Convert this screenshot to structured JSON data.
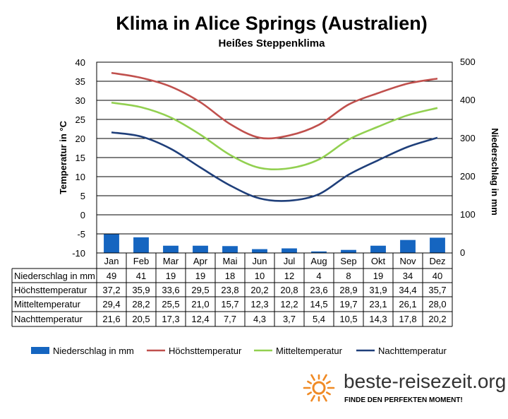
{
  "chart_data": {
    "type": "bar+line",
    "title": "Klima in Alice Springs (Australien)",
    "subtitle": "Heißes Steppenklima",
    "categories": [
      "Jan",
      "Feb",
      "Mar",
      "Apr",
      "Mai",
      "Jun",
      "Jul",
      "Aug",
      "Sep",
      "Okt",
      "Nov",
      "Dez"
    ],
    "y_left": {
      "label": "Temperatur in °C",
      "min": -10,
      "max": 40,
      "ticks": [
        40,
        35,
        30,
        25,
        20,
        15,
        10,
        5,
        0,
        -5,
        -10
      ]
    },
    "y_right": {
      "label": "Niederschlag in mm",
      "min": 0,
      "max": 500,
      "ticks": [
        500,
        400,
        300,
        200,
        100,
        0
      ]
    },
    "grid": true,
    "legend_position": "bottom",
    "series": [
      {
        "name": "Niederschlag in mm",
        "kind": "bar",
        "axis": "right",
        "color": "#1565c0",
        "values": [
          49,
          41,
          19,
          19,
          18,
          10,
          12,
          4,
          8,
          19,
          34,
          40
        ],
        "labels": [
          "49",
          "41",
          "19",
          "19",
          "18",
          "10",
          "12",
          "4",
          "8",
          "19",
          "34",
          "40"
        ]
      },
      {
        "name": "Höchsttemperatur",
        "kind": "line",
        "axis": "left",
        "color": "#c0504d",
        "values": [
          37.2,
          35.9,
          33.6,
          29.5,
          23.8,
          20.2,
          20.8,
          23.6,
          28.9,
          31.9,
          34.4,
          35.7
        ],
        "labels": [
          "37,2",
          "35,9",
          "33,6",
          "29,5",
          "23,8",
          "20,2",
          "20,8",
          "23,6",
          "28,9",
          "31,9",
          "34,4",
          "35,7"
        ]
      },
      {
        "name": "Mitteltemperatur",
        "kind": "line",
        "axis": "left",
        "color": "#92d050",
        "values": [
          29.4,
          28.2,
          25.5,
          21.0,
          15.7,
          12.3,
          12.2,
          14.5,
          19.7,
          23.1,
          26.1,
          28.0
        ],
        "labels": [
          "29,4",
          "28,2",
          "25,5",
          "21,0",
          "15,7",
          "12,3",
          "12,2",
          "14,5",
          "19,7",
          "23,1",
          "26,1",
          "28,0"
        ]
      },
      {
        "name": "Nachttemperatur",
        "kind": "line",
        "axis": "left",
        "color": "#1f3f7a",
        "values": [
          21.6,
          20.5,
          17.3,
          12.4,
          7.7,
          4.3,
          3.7,
          5.4,
          10.5,
          14.3,
          17.8,
          20.2
        ],
        "labels": [
          "21,6",
          "20,5",
          "17,3",
          "12,4",
          "7,7",
          "4,3",
          "3,7",
          "5,4",
          "10,5",
          "14,3",
          "17,8",
          "20,2"
        ]
      }
    ]
  },
  "branding": {
    "name": "beste-reisezeit.org",
    "slogan": "FINDE DEN PERFEKTEN MOMENT!",
    "logo_icon": "sun-icon",
    "accent": "#f08a24"
  }
}
